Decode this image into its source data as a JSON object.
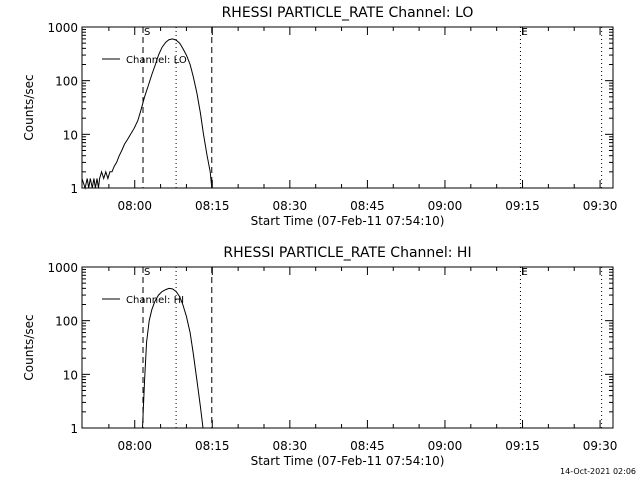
{
  "footer_timestamp": "14-Oct-2021 02:06",
  "chart_data": [
    {
      "type": "line",
      "title": "RHESSI PARTICLE_RATE Channel: LO",
      "xlabel": "Start Time (07-Feb-11 07:54:10)",
      "ylabel": "Counts/sec",
      "yscale": "log",
      "ylim": [
        1,
        1000
      ],
      "xlim_minutes": [
        -5.2,
        97.5
      ],
      "x_units": "minutes after 07:55",
      "x_ticks": [
        {
          "label": "08:00",
          "minute": 5
        },
        {
          "label": "08:15",
          "minute": 20
        },
        {
          "label": "08:30",
          "minute": 35
        },
        {
          "label": "08:45",
          "minute": 50
        },
        {
          "label": "09:00",
          "minute": 65
        },
        {
          "label": "09:15",
          "minute": 80
        },
        {
          "label": "09:30",
          "minute": 95
        }
      ],
      "y_ticks": [
        {
          "label": "1000",
          "value": 1000
        },
        {
          "label": "100",
          "value": 100
        },
        {
          "label": "10",
          "value": 10
        },
        {
          "label": "1",
          "value": 1
        }
      ],
      "legend": {
        "label": "Channel: LO",
        "placement": "top-left"
      },
      "markers": [
        {
          "label": "S",
          "minute": 6.6,
          "style": "dashed"
        },
        {
          "label": "",
          "minute": 19.9,
          "style": "dashed"
        },
        {
          "label": "",
          "minute": 13.0,
          "style": "dotted"
        },
        {
          "label": "E",
          "minute": 79.6,
          "style": "dotted"
        },
        {
          "label": "",
          "minute": 95.3,
          "style": "dotted"
        }
      ],
      "series": [
        {
          "name": "Channel: LO",
          "x": [
            -5.2,
            -4.6,
            -4.2,
            -3.9,
            -3.6,
            -3.2,
            -2.9,
            -2.6,
            -2.3,
            -2.0,
            -1.8,
            -1.4,
            -1.0,
            -0.6,
            -0.2,
            0.2,
            0.6,
            1.0,
            1.5,
            2.0,
            2.5,
            3.0,
            3.6,
            4.2,
            4.9,
            5.6,
            6.2,
            6.9,
            7.6,
            8.3,
            9.0,
            9.6,
            10.3,
            11.0,
            11.6,
            12.3,
            13.0,
            13.7,
            14.3,
            15.0,
            15.7,
            16.3,
            17.0,
            17.7,
            18.3,
            19.0,
            19.6,
            19.9
          ],
          "y": [
            1.5,
            1.0,
            1.5,
            1.0,
            1.5,
            1.0,
            1.5,
            1.0,
            1.5,
            1.0,
            1.5,
            2.0,
            1.5,
            2.0,
            1.5,
            2.0,
            2.0,
            2.5,
            3.0,
            4.0,
            5.0,
            6.5,
            8.0,
            10.0,
            13.0,
            18.0,
            28.0,
            50.0,
            80.0,
            130.0,
            200.0,
            300.0,
            420.0,
            520.0,
            580.0,
            600.0,
            570.0,
            500.0,
            400.0,
            300.0,
            200.0,
            120.0,
            60.0,
            25.0,
            10.0,
            4.0,
            2.0,
            1.0
          ]
        }
      ]
    },
    {
      "type": "line",
      "title": "RHESSI PARTICLE_RATE Channel: HI",
      "xlabel": "Start Time (07-Feb-11 07:54:10)",
      "ylabel": "Counts/sec",
      "yscale": "log",
      "ylim": [
        1,
        1000
      ],
      "xlim_minutes": [
        -5.2,
        97.5
      ],
      "x_units": "minutes after 07:55",
      "x_ticks": [
        {
          "label": "08:00",
          "minute": 5
        },
        {
          "label": "08:15",
          "minute": 20
        },
        {
          "label": "08:30",
          "minute": 35
        },
        {
          "label": "08:45",
          "minute": 50
        },
        {
          "label": "09:00",
          "minute": 65
        },
        {
          "label": "09:15",
          "minute": 80
        },
        {
          "label": "09:30",
          "minute": 95
        }
      ],
      "y_ticks": [
        {
          "label": "1000",
          "value": 1000
        },
        {
          "label": "100",
          "value": 100
        },
        {
          "label": "10",
          "value": 10
        },
        {
          "label": "1",
          "value": 1
        }
      ],
      "legend": {
        "label": "Channel: HI",
        "placement": "top-left"
      },
      "markers": [
        {
          "label": "S",
          "minute": 6.6,
          "style": "dashed"
        },
        {
          "label": "",
          "minute": 19.9,
          "style": "dashed"
        },
        {
          "label": "",
          "minute": 13.0,
          "style": "dotted"
        },
        {
          "label": "E",
          "minute": 79.6,
          "style": "dotted"
        },
        {
          "label": "",
          "minute": 95.3,
          "style": "dotted"
        }
      ],
      "series": [
        {
          "name": "Channel: HI",
          "x": [
            6.5,
            6.9,
            7.3,
            7.8,
            8.3,
            8.9,
            9.6,
            10.3,
            11.0,
            11.6,
            12.3,
            13.0,
            13.7,
            14.3,
            15.0,
            15.7,
            16.3,
            17.0,
            17.7,
            18.2
          ],
          "y": [
            1.0,
            8.0,
            40.0,
            100.0,
            160.0,
            230.0,
            300.0,
            350.0,
            380.0,
            400.0,
            390.0,
            350.0,
            280.0,
            200.0,
            120.0,
            60.0,
            25.0,
            8.0,
            2.5,
            1.0
          ]
        }
      ]
    }
  ]
}
